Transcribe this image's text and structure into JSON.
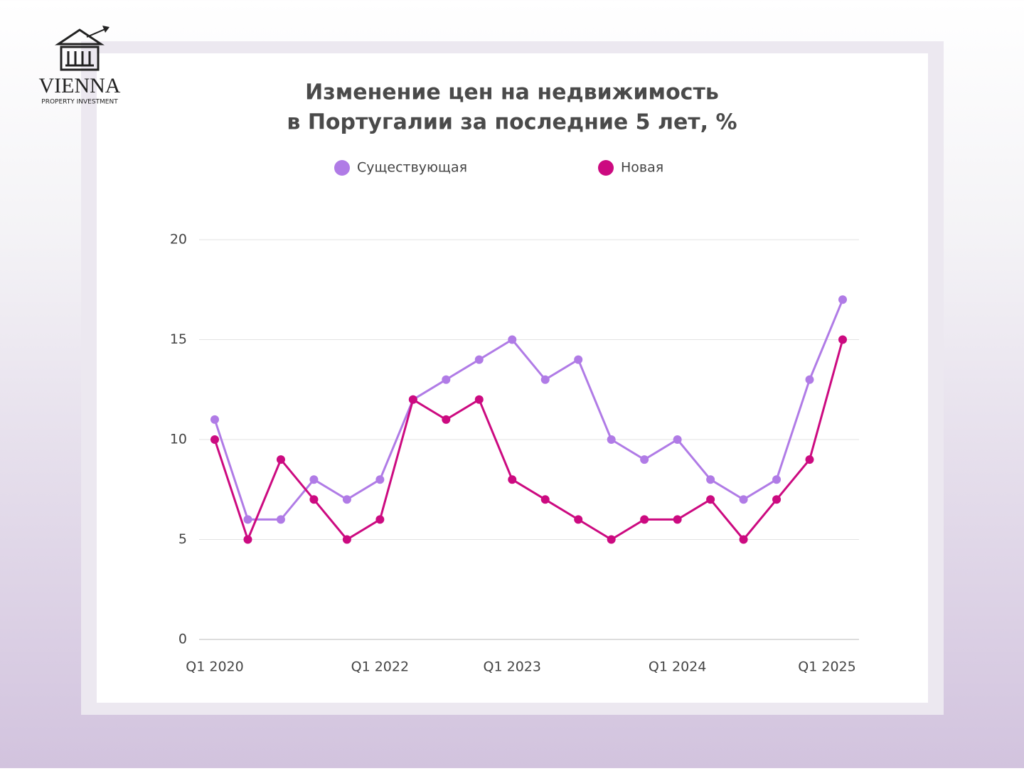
{
  "logo": {
    "name": "VIENNA",
    "tagline": "PROPERTY INVESTMENT"
  },
  "chart_data": {
    "type": "line",
    "title": [
      "Изменение цен на недвижимость",
      "в Португалии за последние 5 лет, %"
    ],
    "categories": [
      "Q1 2020",
      null,
      null,
      null,
      null,
      "Q1 2022",
      null,
      null,
      null,
      "Q1 2023",
      null,
      null,
      null,
      null,
      "Q1 2024",
      null,
      null,
      null,
      null,
      "Q1 2025"
    ],
    "series": [
      {
        "name": "Существующая",
        "color": "#b07be6",
        "values": [
          11,
          6,
          6,
          8,
          7,
          8,
          12,
          13,
          14,
          15,
          13,
          14,
          10,
          9,
          10,
          8,
          7,
          8,
          13,
          17
        ]
      },
      {
        "name": "Новая",
        "color": "#cc0a80",
        "values": [
          10,
          5,
          9,
          7,
          5,
          6,
          12,
          11,
          12,
          8,
          7,
          6,
          5,
          6,
          6,
          7,
          5,
          7,
          9,
          15
        ]
      }
    ],
    "ylim": [
      0,
      20
    ],
    "yticks": [
      0,
      5,
      10,
      15,
      20
    ],
    "grid": true,
    "legend": "top"
  }
}
